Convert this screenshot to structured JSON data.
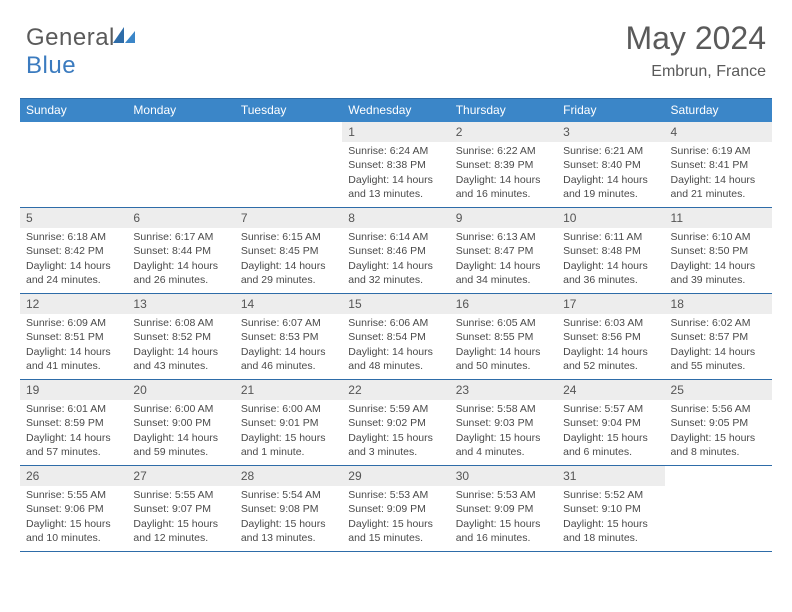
{
  "brand": {
    "part1": "General",
    "part2": "Blue"
  },
  "title": "May 2024",
  "location": "Embrun, France",
  "colors": {
    "header_bar": "#3b86c8",
    "rule": "#2e6ca8",
    "daynum_bg": "#ededed",
    "text": "#4a4a4a",
    "logo_blue": "#3b7bbf"
  },
  "weekdays": [
    "Sunday",
    "Monday",
    "Tuesday",
    "Wednesday",
    "Thursday",
    "Friday",
    "Saturday"
  ],
  "weeks": [
    [
      {
        "n": "",
        "sr": "",
        "ss": "",
        "dl1": "",
        "dl2": ""
      },
      {
        "n": "",
        "sr": "",
        "ss": "",
        "dl1": "",
        "dl2": ""
      },
      {
        "n": "",
        "sr": "",
        "ss": "",
        "dl1": "",
        "dl2": ""
      },
      {
        "n": "1",
        "sr": "Sunrise: 6:24 AM",
        "ss": "Sunset: 8:38 PM",
        "dl1": "Daylight: 14 hours",
        "dl2": "and 13 minutes."
      },
      {
        "n": "2",
        "sr": "Sunrise: 6:22 AM",
        "ss": "Sunset: 8:39 PM",
        "dl1": "Daylight: 14 hours",
        "dl2": "and 16 minutes."
      },
      {
        "n": "3",
        "sr": "Sunrise: 6:21 AM",
        "ss": "Sunset: 8:40 PM",
        "dl1": "Daylight: 14 hours",
        "dl2": "and 19 minutes."
      },
      {
        "n": "4",
        "sr": "Sunrise: 6:19 AM",
        "ss": "Sunset: 8:41 PM",
        "dl1": "Daylight: 14 hours",
        "dl2": "and 21 minutes."
      }
    ],
    [
      {
        "n": "5",
        "sr": "Sunrise: 6:18 AM",
        "ss": "Sunset: 8:42 PM",
        "dl1": "Daylight: 14 hours",
        "dl2": "and 24 minutes."
      },
      {
        "n": "6",
        "sr": "Sunrise: 6:17 AM",
        "ss": "Sunset: 8:44 PM",
        "dl1": "Daylight: 14 hours",
        "dl2": "and 26 minutes."
      },
      {
        "n": "7",
        "sr": "Sunrise: 6:15 AM",
        "ss": "Sunset: 8:45 PM",
        "dl1": "Daylight: 14 hours",
        "dl2": "and 29 minutes."
      },
      {
        "n": "8",
        "sr": "Sunrise: 6:14 AM",
        "ss": "Sunset: 8:46 PM",
        "dl1": "Daylight: 14 hours",
        "dl2": "and 32 minutes."
      },
      {
        "n": "9",
        "sr": "Sunrise: 6:13 AM",
        "ss": "Sunset: 8:47 PM",
        "dl1": "Daylight: 14 hours",
        "dl2": "and 34 minutes."
      },
      {
        "n": "10",
        "sr": "Sunrise: 6:11 AM",
        "ss": "Sunset: 8:48 PM",
        "dl1": "Daylight: 14 hours",
        "dl2": "and 36 minutes."
      },
      {
        "n": "11",
        "sr": "Sunrise: 6:10 AM",
        "ss": "Sunset: 8:50 PM",
        "dl1": "Daylight: 14 hours",
        "dl2": "and 39 minutes."
      }
    ],
    [
      {
        "n": "12",
        "sr": "Sunrise: 6:09 AM",
        "ss": "Sunset: 8:51 PM",
        "dl1": "Daylight: 14 hours",
        "dl2": "and 41 minutes."
      },
      {
        "n": "13",
        "sr": "Sunrise: 6:08 AM",
        "ss": "Sunset: 8:52 PM",
        "dl1": "Daylight: 14 hours",
        "dl2": "and 43 minutes."
      },
      {
        "n": "14",
        "sr": "Sunrise: 6:07 AM",
        "ss": "Sunset: 8:53 PM",
        "dl1": "Daylight: 14 hours",
        "dl2": "and 46 minutes."
      },
      {
        "n": "15",
        "sr": "Sunrise: 6:06 AM",
        "ss": "Sunset: 8:54 PM",
        "dl1": "Daylight: 14 hours",
        "dl2": "and 48 minutes."
      },
      {
        "n": "16",
        "sr": "Sunrise: 6:05 AM",
        "ss": "Sunset: 8:55 PM",
        "dl1": "Daylight: 14 hours",
        "dl2": "and 50 minutes."
      },
      {
        "n": "17",
        "sr": "Sunrise: 6:03 AM",
        "ss": "Sunset: 8:56 PM",
        "dl1": "Daylight: 14 hours",
        "dl2": "and 52 minutes."
      },
      {
        "n": "18",
        "sr": "Sunrise: 6:02 AM",
        "ss": "Sunset: 8:57 PM",
        "dl1": "Daylight: 14 hours",
        "dl2": "and 55 minutes."
      }
    ],
    [
      {
        "n": "19",
        "sr": "Sunrise: 6:01 AM",
        "ss": "Sunset: 8:59 PM",
        "dl1": "Daylight: 14 hours",
        "dl2": "and 57 minutes."
      },
      {
        "n": "20",
        "sr": "Sunrise: 6:00 AM",
        "ss": "Sunset: 9:00 PM",
        "dl1": "Daylight: 14 hours",
        "dl2": "and 59 minutes."
      },
      {
        "n": "21",
        "sr": "Sunrise: 6:00 AM",
        "ss": "Sunset: 9:01 PM",
        "dl1": "Daylight: 15 hours",
        "dl2": "and 1 minute."
      },
      {
        "n": "22",
        "sr": "Sunrise: 5:59 AM",
        "ss": "Sunset: 9:02 PM",
        "dl1": "Daylight: 15 hours",
        "dl2": "and 3 minutes."
      },
      {
        "n": "23",
        "sr": "Sunrise: 5:58 AM",
        "ss": "Sunset: 9:03 PM",
        "dl1": "Daylight: 15 hours",
        "dl2": "and 4 minutes."
      },
      {
        "n": "24",
        "sr": "Sunrise: 5:57 AM",
        "ss": "Sunset: 9:04 PM",
        "dl1": "Daylight: 15 hours",
        "dl2": "and 6 minutes."
      },
      {
        "n": "25",
        "sr": "Sunrise: 5:56 AM",
        "ss": "Sunset: 9:05 PM",
        "dl1": "Daylight: 15 hours",
        "dl2": "and 8 minutes."
      }
    ],
    [
      {
        "n": "26",
        "sr": "Sunrise: 5:55 AM",
        "ss": "Sunset: 9:06 PM",
        "dl1": "Daylight: 15 hours",
        "dl2": "and 10 minutes."
      },
      {
        "n": "27",
        "sr": "Sunrise: 5:55 AM",
        "ss": "Sunset: 9:07 PM",
        "dl1": "Daylight: 15 hours",
        "dl2": "and 12 minutes."
      },
      {
        "n": "28",
        "sr": "Sunrise: 5:54 AM",
        "ss": "Sunset: 9:08 PM",
        "dl1": "Daylight: 15 hours",
        "dl2": "and 13 minutes."
      },
      {
        "n": "29",
        "sr": "Sunrise: 5:53 AM",
        "ss": "Sunset: 9:09 PM",
        "dl1": "Daylight: 15 hours",
        "dl2": "and 15 minutes."
      },
      {
        "n": "30",
        "sr": "Sunrise: 5:53 AM",
        "ss": "Sunset: 9:09 PM",
        "dl1": "Daylight: 15 hours",
        "dl2": "and 16 minutes."
      },
      {
        "n": "31",
        "sr": "Sunrise: 5:52 AM",
        "ss": "Sunset: 9:10 PM",
        "dl1": "Daylight: 15 hours",
        "dl2": "and 18 minutes."
      },
      {
        "n": "",
        "sr": "",
        "ss": "",
        "dl1": "",
        "dl2": ""
      }
    ]
  ]
}
